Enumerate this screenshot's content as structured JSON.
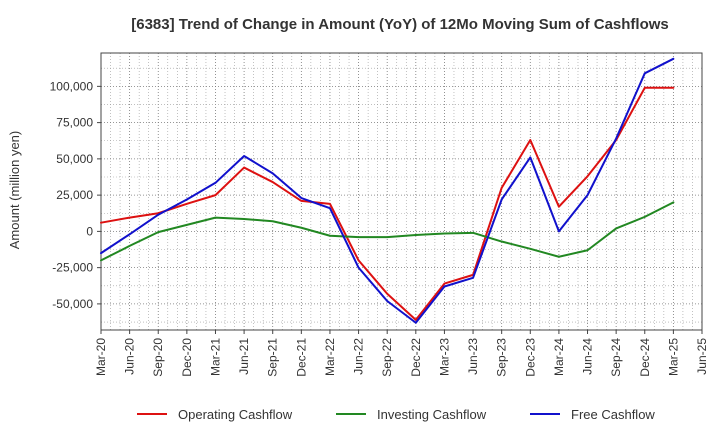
{
  "chart_data": {
    "type": "line",
    "title": "[6383]  Trend of Change in Amount (YoY) of 12Mo Moving Sum of Cashflows",
    "xlabel": "",
    "ylabel": "Amount (million yen)",
    "ylim": [
      -68000,
      123000
    ],
    "yticks": [
      -50000,
      -25000,
      0,
      25000,
      50000,
      75000,
      100000
    ],
    "ytick_labels": [
      "-50,000",
      "-25,000",
      "0",
      "25,000",
      "50,000",
      "75,000",
      "100,000"
    ],
    "categories": [
      "Mar-20",
      "Jun-20",
      "Sep-20",
      "Dec-20",
      "Mar-21",
      "Jun-21",
      "Sep-21",
      "Dec-21",
      "Mar-22",
      "Jun-22",
      "Sep-22",
      "Dec-22",
      "Mar-23",
      "Jun-23",
      "Sep-23",
      "Dec-23",
      "Mar-24",
      "Jun-24",
      "Sep-24",
      "Dec-24",
      "Mar-25",
      "Jun-25"
    ],
    "grid": true,
    "legend_position": "bottom",
    "series": [
      {
        "name": "Operating Cashflow",
        "color": "#dd1111",
        "values": [
          6000,
          9500,
          12500,
          19000,
          25000,
          44000,
          34000,
          21000,
          19000,
          -20000,
          -43000,
          -61000,
          -36000,
          -30000,
          30000,
          63000,
          17000,
          38000,
          63000,
          99000,
          99000,
          null
        ]
      },
      {
        "name": "Investing Cashflow",
        "color": "#228822",
        "values": [
          -20000,
          -10000,
          -500,
          4500,
          9500,
          8500,
          7000,
          2500,
          -3000,
          -4000,
          -4000,
          -2500,
          -1500,
          -1000,
          -7000,
          -12000,
          -17500,
          -13000,
          2000,
          10000,
          20000,
          null
        ]
      },
      {
        "name": "Free Cashflow",
        "color": "#1111cc",
        "values": [
          -15000,
          -2000,
          11500,
          22000,
          33500,
          52000,
          40000,
          23000,
          16000,
          -25000,
          -48000,
          -63000,
          -38000,
          -32000,
          22000,
          51000,
          0,
          25000,
          64000,
          109000,
          119000,
          null
        ]
      }
    ]
  }
}
